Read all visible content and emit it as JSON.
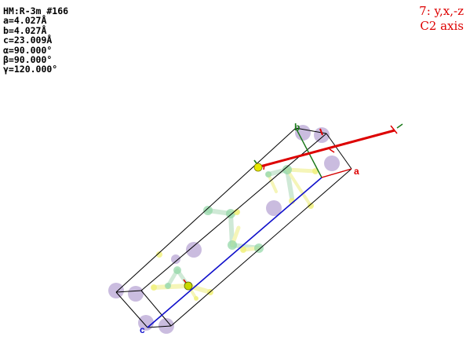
{
  "cell_info": {
    "space_group": "HM:R-3m #166",
    "a": "a=4.027Å",
    "b": "b=4.027Å",
    "c": "c=23.009Å",
    "alpha": "α=90.000°",
    "beta": "β=90.000°",
    "gamma": "γ=120.000°"
  },
  "symmetry_operation": {
    "operation": "7: y,x,-z",
    "element": "C2 axis",
    "color": "#dd0000"
  },
  "axes": {
    "a": {
      "label": "a",
      "color": "#dd0000"
    },
    "b": {
      "label": "b",
      "color": "#1a7a1a"
    },
    "c": {
      "label": "c",
      "color": "#1010cc"
    }
  },
  "colors": {
    "cell_edges": "#000000",
    "c2_axis": "#dd0000",
    "heavy_atom": "#b8a6d4",
    "yellow_atom": "#f0f07a",
    "green_atom": "#8fd6a4"
  }
}
